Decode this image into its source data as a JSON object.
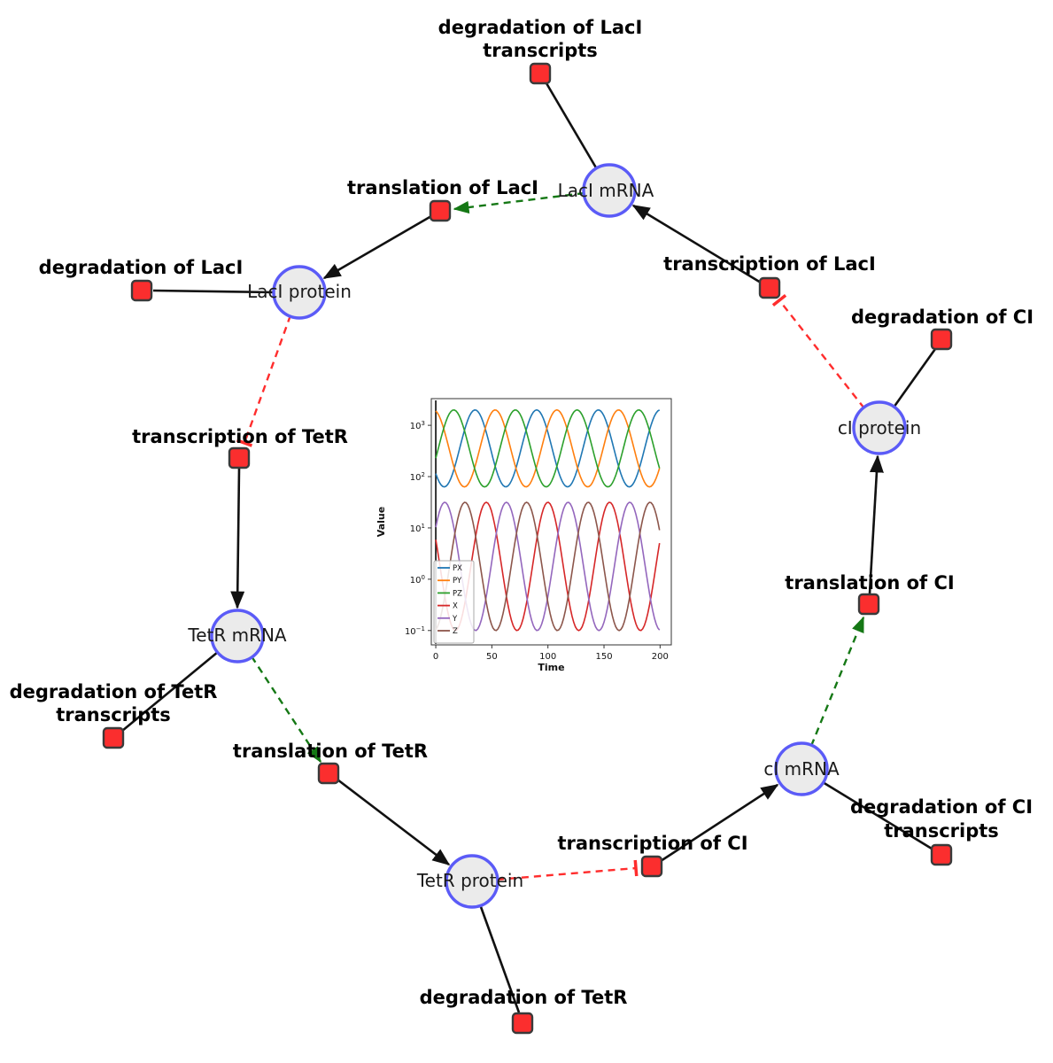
{
  "diagram": {
    "title": "repressilator gene regulatory network",
    "species": {
      "laci_mrna": {
        "label": "LacI mRNA"
      },
      "laci_protein": {
        "label": "LacI protein"
      },
      "tetr_mrna": {
        "label": "TetR mRNA"
      },
      "tetr_protein": {
        "label": "TetR protein"
      },
      "ci_mrna": {
        "label": "cI mRNA"
      },
      "ci_protein": {
        "label": "cI protein"
      }
    },
    "reactions": {
      "deg_laci_tx": {
        "label": "degradation of LacI",
        "label2": "transcripts"
      },
      "translation_laci": {
        "label": "translation of LacI"
      },
      "transcription_laci": {
        "label": "transcription of LacI"
      },
      "deg_laci": {
        "label": "degradation of LacI"
      },
      "deg_ci": {
        "label": "degradation of CI"
      },
      "transcription_tetr": {
        "label": "transcription of TetR"
      },
      "translation_ci": {
        "label": "translation of CI"
      },
      "deg_tetr_tx": {
        "label": "degradation of TetR",
        "label2": "transcripts"
      },
      "translation_tetr": {
        "label": "translation of TetR"
      },
      "deg_ci_tx": {
        "label": "degradation of CI",
        "label2": "transcripts"
      },
      "transcription_ci": {
        "label": "transcription of CI"
      },
      "deg_tetr": {
        "label": "degradation of TetR"
      }
    },
    "colors": {
      "species_fill": "#ebebeb",
      "species_stroke": "#5b5bf7",
      "reaction_fill": "#fb2e2e",
      "reaction_stroke": "#3a3a3a",
      "edge": "#111111",
      "activation": "#157815",
      "inhibition": "#ff2d2d"
    }
  },
  "chart_data": {
    "type": "line",
    "title": "",
    "xlabel": "Time",
    "ylabel": "Value",
    "x_range": [
      0,
      200
    ],
    "x_ticks": [
      0,
      50,
      100,
      150,
      200
    ],
    "y_scale": "log",
    "y_tick_exponents": [
      3,
      2,
      1,
      0,
      -1
    ],
    "y_range_approx": [
      0.05,
      3000
    ],
    "legend_position": "lower left",
    "initial_spike_at_t0": true,
    "series": [
      {
        "name": "PX",
        "color": "#1f77b4",
        "log_center": 2.55,
        "log_amp": 0.75,
        "period": 55,
        "peak_t": 35
      },
      {
        "name": "PY",
        "color": "#ff7f0e",
        "log_center": 2.55,
        "log_amp": 0.75,
        "period": 55,
        "peak_t": 53
      },
      {
        "name": "PZ",
        "color": "#2ca02c",
        "log_center": 2.55,
        "log_amp": 0.75,
        "period": 55,
        "peak_t": 71
      },
      {
        "name": "X",
        "color": "#d62728",
        "log_center": 0.25,
        "log_amp": 1.25,
        "period": 55,
        "peak_t": 45
      },
      {
        "name": "Y",
        "color": "#9467bd",
        "log_center": 0.25,
        "log_amp": 1.25,
        "period": 55,
        "peak_t": 63
      },
      {
        "name": "Z",
        "color": "#8c564b",
        "log_center": 0.25,
        "log_amp": 1.25,
        "period": 55,
        "peak_t": 81
      }
    ]
  }
}
